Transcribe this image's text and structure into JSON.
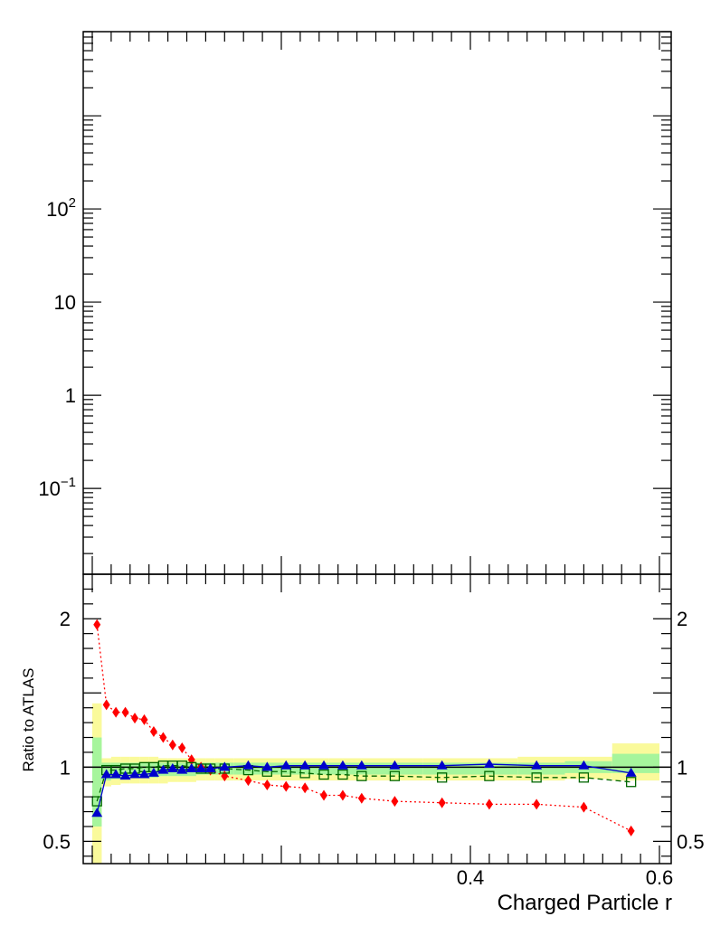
{
  "chart_data": [
    {
      "panel": "upper",
      "type": "line",
      "yscale": "log",
      "ylim": [
        0.012,
        8000
      ],
      "xlim": [
        0.0,
        0.6
      ],
      "y_tick_labels": [
        {
          "value": 100,
          "base": "10",
          "exp": "2"
        },
        {
          "value": 10,
          "text": "10"
        },
        {
          "value": 1,
          "text": "1"
        },
        {
          "value": 0.1,
          "base": "10",
          "exp": "−1"
        }
      ],
      "series": []
    },
    {
      "panel": "ratio",
      "type": "line",
      "ylabel": "Ratio to ATLAS",
      "xlabel": "Charged Particle r",
      "xlim": [
        0.0,
        0.6
      ],
      "ylim": [
        0.35,
        2.3
      ],
      "y_tick_labels": [
        {
          "value": 2,
          "text": "2"
        },
        {
          "value": 1,
          "text": "1"
        },
        {
          "value": 0.5,
          "text": "0.5"
        }
      ],
      "x_tick_labels": [
        {
          "value": 0.4,
          "text": "0.4"
        },
        {
          "value": 0.6,
          "text": "0.6"
        }
      ],
      "reference_line": 1,
      "uncertainty_bands": {
        "edges": [
          0.0,
          0.01,
          0.02,
          0.03,
          0.04,
          0.05,
          0.06,
          0.07,
          0.08,
          0.09,
          0.1,
          0.11,
          0.12,
          0.13,
          0.15,
          0.2,
          0.25,
          0.3,
          0.35,
          0.4,
          0.45,
          0.5,
          0.55,
          0.6
        ],
        "inner_color": "#a6f59c",
        "outer_color": "#fafa9b",
        "inner_lo": [
          0.6,
          0.91,
          0.92,
          0.93,
          0.93,
          0.93,
          0.93,
          0.94,
          0.94,
          0.94,
          0.94,
          0.95,
          0.95,
          0.95,
          0.95,
          0.95,
          0.95,
          0.95,
          0.95,
          0.95,
          0.95,
          0.96,
          0.96
        ],
        "inner_hi": [
          1.2,
          1.03,
          1.03,
          1.03,
          1.03,
          1.03,
          1.03,
          1.03,
          1.03,
          1.03,
          1.03,
          1.03,
          1.03,
          1.03,
          1.03,
          1.03,
          1.03,
          1.03,
          1.03,
          1.03,
          1.03,
          1.04,
          1.09
        ],
        "outer_lo": [
          0.35,
          0.87,
          0.88,
          0.89,
          0.89,
          0.89,
          0.89,
          0.89,
          0.9,
          0.9,
          0.9,
          0.91,
          0.91,
          0.91,
          0.91,
          0.91,
          0.91,
          0.91,
          0.91,
          0.91,
          0.91,
          0.92,
          0.91
        ],
        "outer_hi": [
          1.43,
          1.06,
          1.07,
          1.07,
          1.07,
          1.07,
          1.07,
          1.06,
          1.06,
          1.06,
          1.06,
          1.06,
          1.06,
          1.06,
          1.06,
          1.06,
          1.06,
          1.06,
          1.06,
          1.06,
          1.07,
          1.07,
          1.16
        ]
      },
      "series": [
        {
          "color": "#ff0000",
          "marker": "diamond",
          "linestyle": "dotted",
          "x": [
            0.005,
            0.015,
            0.025,
            0.035,
            0.045,
            0.055,
            0.065,
            0.075,
            0.085,
            0.095,
            0.105,
            0.115,
            0.125,
            0.14,
            0.165,
            0.185,
            0.205,
            0.225,
            0.245,
            0.265,
            0.285,
            0.32,
            0.37,
            0.42,
            0.47,
            0.52,
            0.57
          ],
          "values": [
            1.96,
            1.42,
            1.37,
            1.37,
            1.33,
            1.32,
            1.24,
            1.2,
            1.15,
            1.13,
            1.05,
            1.0,
            0.98,
            0.94,
            0.91,
            0.88,
            0.87,
            0.86,
            0.81,
            0.81,
            0.79,
            0.77,
            0.76,
            0.75,
            0.75,
            0.73,
            0.57
          ]
        },
        {
          "color": "#006600",
          "marker": "open-square",
          "linestyle": "dashed",
          "x": [
            0.005,
            0.015,
            0.025,
            0.035,
            0.045,
            0.055,
            0.065,
            0.075,
            0.085,
            0.095,
            0.105,
            0.115,
            0.125,
            0.14,
            0.165,
            0.185,
            0.205,
            0.225,
            0.245,
            0.265,
            0.285,
            0.32,
            0.37,
            0.42,
            0.47,
            0.52,
            0.57
          ],
          "values": [
            0.77,
            0.98,
            0.98,
            0.99,
            0.99,
            1.0,
            1.0,
            1.01,
            1.01,
            1.01,
            1.0,
            0.99,
            0.99,
            0.99,
            0.98,
            0.97,
            0.97,
            0.96,
            0.95,
            0.95,
            0.94,
            0.94,
            0.93,
            0.94,
            0.93,
            0.93,
            0.9
          ]
        },
        {
          "color": "#0000cc",
          "marker": "triangle",
          "linestyle": "solid",
          "x": [
            0.005,
            0.015,
            0.025,
            0.035,
            0.045,
            0.055,
            0.065,
            0.075,
            0.085,
            0.095,
            0.105,
            0.115,
            0.125,
            0.14,
            0.165,
            0.185,
            0.205,
            0.225,
            0.245,
            0.265,
            0.285,
            0.32,
            0.37,
            0.42,
            0.47,
            0.52,
            0.57
          ],
          "values": [
            0.69,
            0.95,
            0.95,
            0.94,
            0.95,
            0.95,
            0.96,
            0.98,
            0.99,
            0.98,
            0.99,
            0.99,
            0.99,
            1.0,
            1.01,
            1.0,
            1.01,
            1.01,
            1.01,
            1.01,
            1.01,
            1.01,
            1.01,
            1.02,
            1.01,
            1.01,
            0.96
          ]
        }
      ]
    }
  ]
}
